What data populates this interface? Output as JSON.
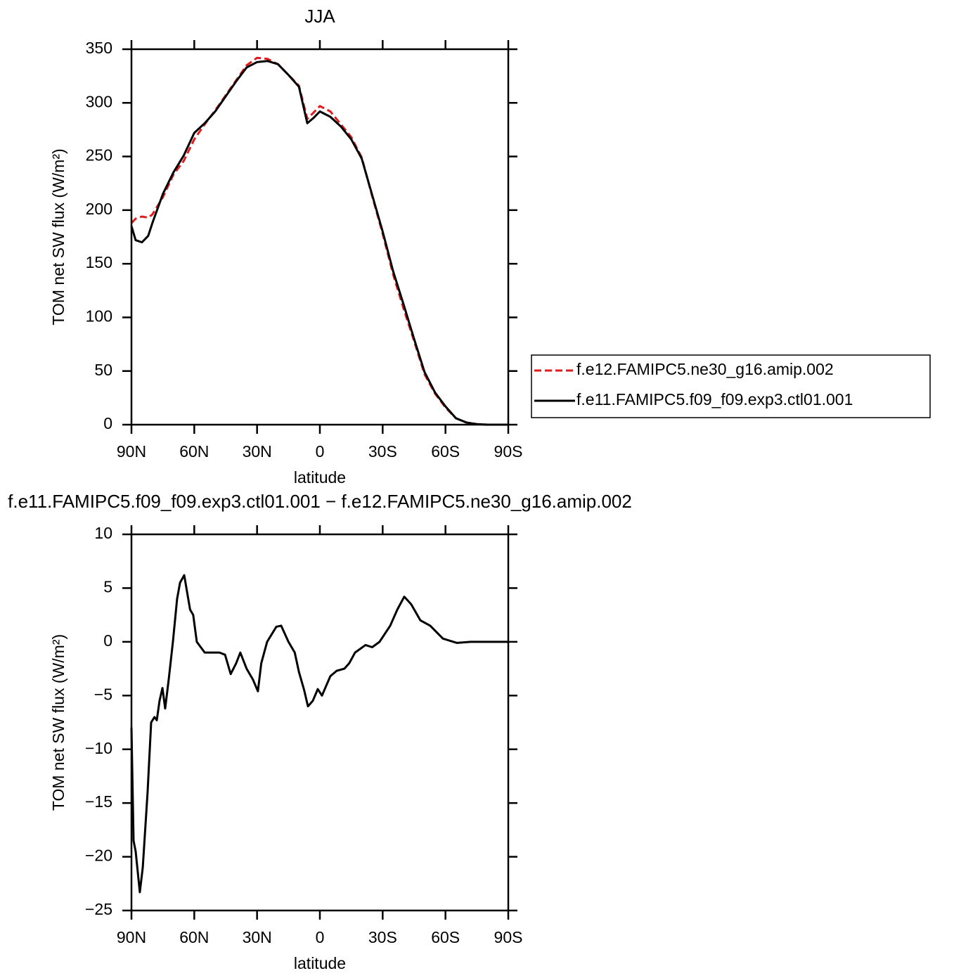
{
  "chart_data": [
    {
      "type": "line",
      "title": "JJA",
      "xlabel": "latitude",
      "ylabel": "TOM net SW flux (W/m²)",
      "x": [
        90,
        88,
        85,
        82,
        80,
        75,
        70,
        65,
        60,
        55,
        50,
        45,
        40,
        35,
        30,
        25,
        20,
        15,
        10,
        6,
        3,
        0,
        -5,
        -10,
        -15,
        -20,
        -25,
        -30,
        -35,
        -40,
        -45,
        -50,
        -55,
        -60,
        -65,
        -70,
        -75,
        -80,
        -85,
        -90
      ],
      "series": [
        {
          "name": "f.e12.FAMIPC5.ne30_g16.amip.002",
          "color": "#e31a1c",
          "linestyle": "dashed",
          "values": [
            188,
            192,
            194,
            193,
            196,
            212,
            233,
            246,
            266,
            280,
            293,
            307,
            321,
            335,
            342,
            341,
            336,
            326,
            316,
            285,
            291,
            297,
            292,
            280,
            268,
            249,
            213,
            178,
            140,
            108,
            78,
            47,
            29,
            16,
            6,
            2,
            0.5,
            0,
            0,
            0
          ]
        },
        {
          "name": "f.e11.FAMIPC5.f09_f09.exp3.ctl01.001",
          "color": "#000000",
          "linestyle": "solid",
          "values": [
            185,
            172,
            170,
            176,
            188,
            215,
            235,
            251,
            272,
            281,
            292,
            306,
            320,
            333,
            338,
            339,
            336,
            326,
            315,
            281,
            286,
            292,
            287,
            278,
            266,
            248,
            214,
            180,
            143,
            112,
            80,
            49,
            30,
            17,
            6,
            2,
            0.5,
            0,
            0,
            0
          ]
        }
      ],
      "xlim": [
        90,
        -90
      ],
      "xticks": [
        {
          "value": 90,
          "label": "90N"
        },
        {
          "value": 60,
          "label": "60N"
        },
        {
          "value": 30,
          "label": "30N"
        },
        0,
        {
          "value": -30,
          "label": "30S"
        },
        {
          "value": -60,
          "label": "60S"
        },
        {
          "value": -90,
          "label": "90S"
        }
      ],
      "ylim": [
        0,
        350
      ],
      "yticks": [
        0,
        50,
        100,
        150,
        200,
        250,
        300,
        350
      ],
      "legend": "right"
    },
    {
      "type": "line",
      "title": "f.e11.FAMIPC5.f09_f09.exp3.ctl01.001 − f.e12.FAMIPC5.ne30_g16.amip.002",
      "xlabel": "latitude",
      "ylabel": "TOM net SW flux (W/m²)",
      "x": [
        90,
        89,
        88,
        86,
        84.6,
        82.3,
        80.6,
        79,
        77.9,
        76.6,
        75.2,
        73.9,
        72.2,
        70.2,
        68.2,
        66.8,
        64.8,
        62,
        60.5,
        58.8,
        55,
        52,
        48,
        45.3,
        42.6,
        40,
        38,
        35,
        32,
        29.6,
        28,
        25.2,
        20.8,
        18.5,
        15,
        12,
        10,
        7.5,
        5.7,
        3.4,
        1,
        -1,
        -5,
        -8,
        -11.7,
        -14,
        -16.8,
        -21.8,
        -25,
        -28.5,
        -33.6,
        -37,
        -40.3,
        -43.6,
        -48,
        -52.7,
        -58.8,
        -65.5,
        -72,
        -80,
        -90
      ],
      "values": [
        -8,
        -18.5,
        -19.5,
        -23.3,
        -21,
        -14,
        -7.5,
        -7,
        -7.3,
        -5.5,
        -4.3,
        -6.2,
        -3.5,
        0,
        4,
        5.5,
        6.2,
        3,
        2.5,
        0,
        -1,
        -1,
        -1,
        -1.2,
        -3,
        -2,
        -1,
        -2.5,
        -3.5,
        -4.6,
        -2,
        0,
        1.4,
        1.5,
        0,
        -1,
        -2.8,
        -4.5,
        -6,
        -5.5,
        -4.4,
        -5,
        -3.2,
        -2.7,
        -2.5,
        -2,
        -1,
        -0.3,
        -0.5,
        0,
        1.5,
        3,
        4.2,
        3.5,
        2,
        1.5,
        0.3,
        -0.1,
        0,
        0,
        0
      ],
      "color": "#000000",
      "linestyle": "solid",
      "xlim": [
        90,
        -90
      ],
      "xticks": [
        {
          "value": 90,
          "label": "90N"
        },
        {
          "value": 60,
          "label": "60N"
        },
        {
          "value": 30,
          "label": "30N"
        },
        0,
        {
          "value": -30,
          "label": "30S"
        },
        {
          "value": -60,
          "label": "60S"
        },
        {
          "value": -90,
          "label": "90S"
        }
      ],
      "ylim": [
        -25,
        10
      ],
      "yticks": [
        {
          "value": -25,
          "label": "−25"
        },
        {
          "value": -20,
          "label": "−20"
        },
        {
          "value": -15,
          "label": "−15"
        },
        {
          "value": -10,
          "label": "−10"
        },
        {
          "value": -5,
          "label": "−5"
        },
        0,
        5,
        10
      ]
    }
  ]
}
